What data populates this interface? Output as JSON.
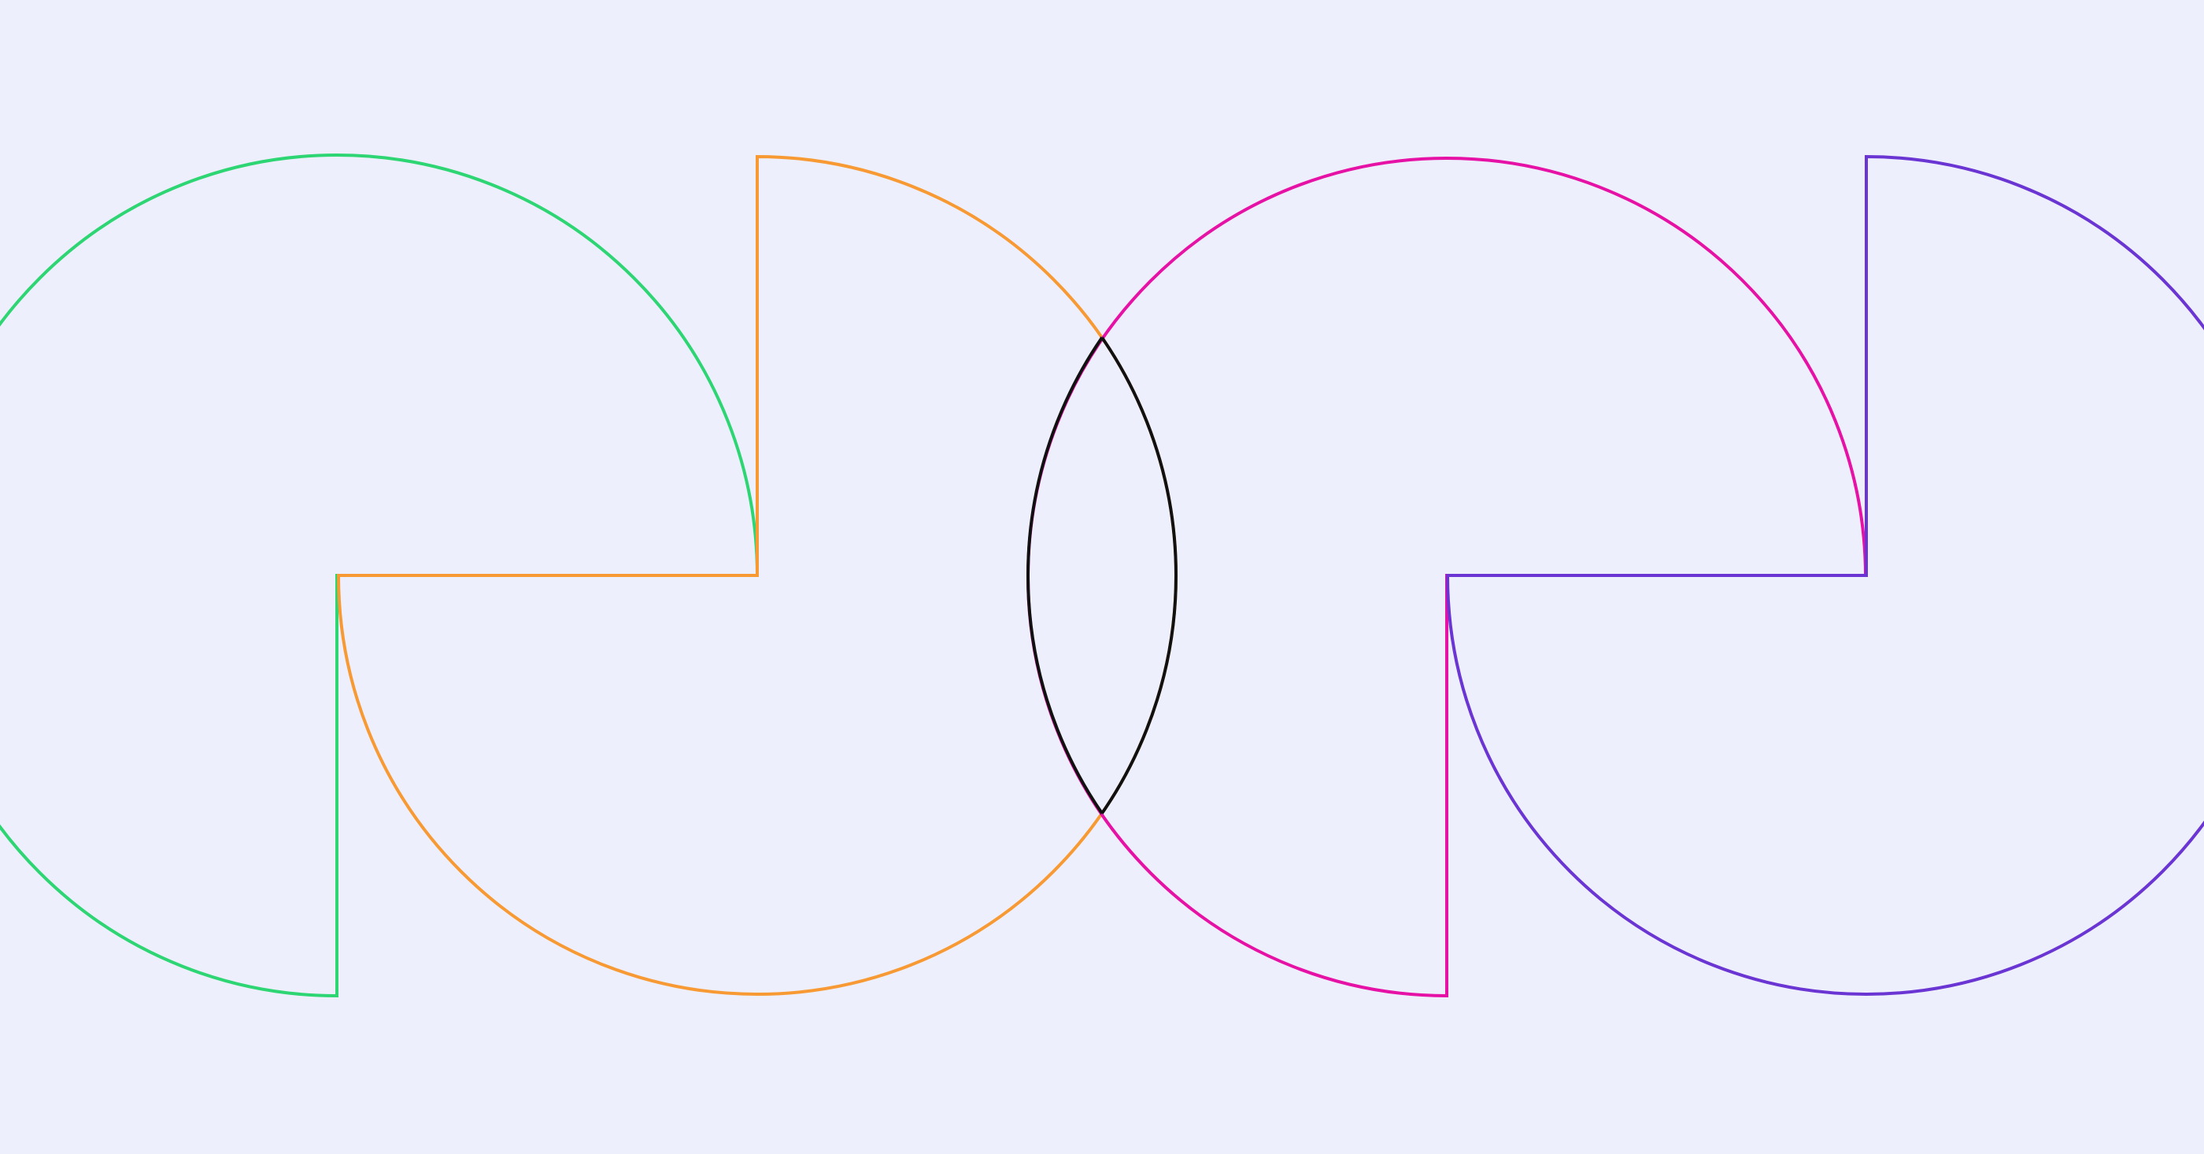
{
  "background": "#eeeffd",
  "shapes": {
    "green": "#2ed573",
    "orange": "#f79a34",
    "magenta": "#e612a6",
    "purple": "#6a35d2",
    "overlap": "#111111"
  }
}
